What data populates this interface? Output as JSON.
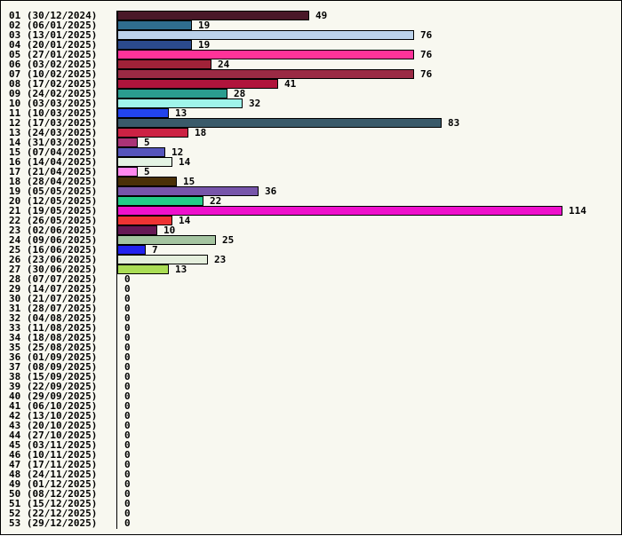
{
  "chart_data": {
    "type": "bar",
    "orientation": "horizontal",
    "title": "",
    "xlabel": "",
    "ylabel": "",
    "grid": false,
    "legend": "none",
    "xlim": [
      0,
      114
    ],
    "categories": [
      "01 (30/12/2024)",
      "02 (06/01/2025)",
      "03 (13/01/2025)",
      "04 (20/01/2025)",
      "05 (27/01/2025)",
      "06 (03/02/2025)",
      "07 (10/02/2025)",
      "08 (17/02/2025)",
      "09 (24/02/2025)",
      "10 (03/03/2025)",
      "11 (10/03/2025)",
      "12 (17/03/2025)",
      "13 (24/03/2025)",
      "14 (31/03/2025)",
      "15 (07/04/2025)",
      "16 (14/04/2025)",
      "17 (21/04/2025)",
      "18 (28/04/2025)",
      "19 (05/05/2025)",
      "20 (12/05/2025)",
      "21 (19/05/2025)",
      "22 (26/05/2025)",
      "23 (02/06/2025)",
      "24 (09/06/2025)",
      "25 (16/06/2025)",
      "26 (23/06/2025)",
      "27 (30/06/2025)",
      "28 (07/07/2025)",
      "29 (14/07/2025)",
      "30 (21/07/2025)",
      "31 (28/07/2025)",
      "32 (04/08/2025)",
      "33 (11/08/2025)",
      "34 (18/08/2025)",
      "35 (25/08/2025)",
      "36 (01/09/2025)",
      "37 (08/09/2025)",
      "38 (15/09/2025)",
      "39 (22/09/2025)",
      "40 (29/09/2025)",
      "41 (06/10/2025)",
      "42 (13/10/2025)",
      "43 (20/10/2025)",
      "44 (27/10/2025)",
      "45 (03/11/2025)",
      "46 (10/11/2025)",
      "47 (17/11/2025)",
      "48 (24/11/2025)",
      "49 (01/12/2025)",
      "50 (08/12/2025)",
      "51 (15/12/2025)",
      "52 (22/12/2025)",
      "53 (29/12/2025)"
    ],
    "values": [
      49,
      19,
      76,
      19,
      76,
      24,
      76,
      41,
      28,
      32,
      13,
      83,
      18,
      5,
      12,
      14,
      5,
      15,
      36,
      22,
      114,
      14,
      10,
      25,
      7,
      23,
      13,
      0,
      0,
      0,
      0,
      0,
      0,
      0,
      0,
      0,
      0,
      0,
      0,
      0,
      0,
      0,
      0,
      0,
      0,
      0,
      0,
      0,
      0,
      0,
      0,
      0,
      0
    ],
    "colors": [
      "#4a1828",
      "#2f6d8f",
      "#bcd2ea",
      "#2b4a8c",
      "#ff3399",
      "#a02238",
      "#9a2a44",
      "#b0143c",
      "#2a9d8f",
      "#9ff4ea",
      "#2244ee",
      "#3a5a6a",
      "#cc2244",
      "#aa3377",
      "#5555bb",
      "#e4f4e4",
      "#ff88ee",
      "#4a3008",
      "#7755aa",
      "#22cc88",
      "#ee11cc",
      "#ee3333",
      "#661855",
      "#a4c4a0",
      "#2222ee",
      "#e4eedc",
      "#aadd55"
    ]
  }
}
